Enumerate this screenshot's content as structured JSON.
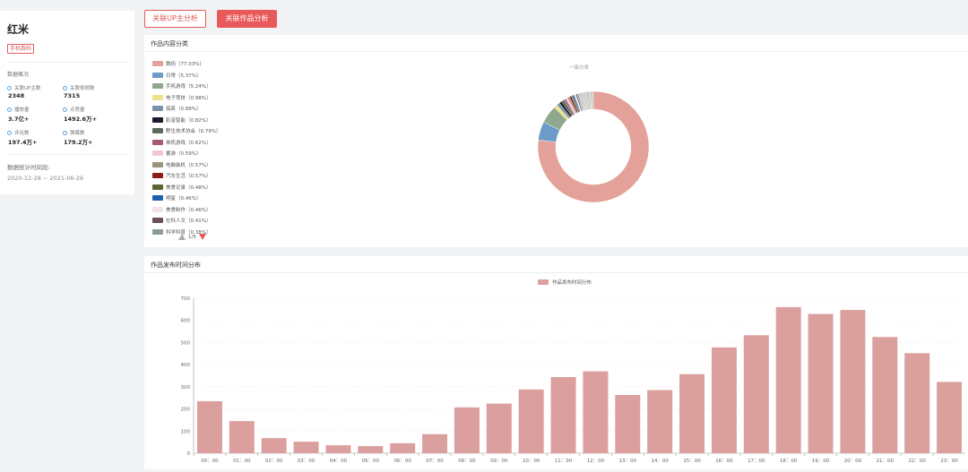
{
  "brand": {
    "name": "红米",
    "tag": "手机数码"
  },
  "overview": {
    "label": "数据概况",
    "stats": [
      {
        "label": "关联UP主数",
        "value": "2348"
      },
      {
        "label": "关联视频数",
        "value": "7315"
      },
      {
        "label": "播放量",
        "value": "3.7亿+"
      },
      {
        "label": "点赞量",
        "value": "1492.6万+"
      },
      {
        "label": "评论数",
        "value": "197.4万+"
      },
      {
        "label": "弹幕数",
        "value": "179.2万+"
      }
    ],
    "period_label": "数据统计时间段:",
    "period_value": "2020-12-28 ~ 2021-06-26"
  },
  "buttons": {
    "up_analysis": "关联UP主分析",
    "works_analysis": "关联作品分析"
  },
  "content_panel": {
    "title": "作品内容分类",
    "subtitle": "一级分类",
    "pager": "1/5",
    "legend": [
      {
        "label": "数码（77.03%）",
        "color": "#e4a199"
      },
      {
        "label": "日常（5.37%）",
        "color": "#6b9bc9"
      },
      {
        "label": "手机游戏（5.24%）",
        "color": "#8fa88d"
      },
      {
        "label": "电子竞技（0.98%）",
        "color": "#ede38a"
      },
      {
        "label": "搞笑（0.88%）",
        "color": "#7b90aa"
      },
      {
        "label": "影音智能（0.82%）",
        "color": "#1b1b2e"
      },
      {
        "label": "野生技术协会（0.79%）",
        "color": "#5a6b5a"
      },
      {
        "label": "单机游戏（0.62%）",
        "color": "#a8586d"
      },
      {
        "label": "番游（0.59%）",
        "color": "#efc8d2"
      },
      {
        "label": "电脑装机（0.57%）",
        "color": "#9a937f"
      },
      {
        "label": "汽车生活（0.57%）",
        "color": "#8e1a1a"
      },
      {
        "label": "美食记录（0.48%）",
        "color": "#5c6430"
      },
      {
        "label": "明星（0.46%）",
        "color": "#1f5fb0"
      },
      {
        "label": "美食制作（0.46%）",
        "color": "#f2e3e6"
      },
      {
        "label": "社科人文（0.41%）",
        "color": "#6a5058"
      },
      {
        "label": "科学科普（0.38%）",
        "color": "#8c9a9a"
      }
    ]
  },
  "chart_data": {
    "type": "bar",
    "title": "作品发布时间分布",
    "series_name": "作品发布时间分布",
    "categories": [
      "00：00",
      "01：00",
      "02：00",
      "03：00",
      "04：00",
      "05：00",
      "06：00",
      "07：00",
      "08：00",
      "09：00",
      "10：00",
      "11：00",
      "12：00",
      "13：00",
      "14：00",
      "15：00",
      "16：00",
      "17：00",
      "18：00",
      "19：00",
      "20：00",
      "21：00",
      "22：00",
      "23：00"
    ],
    "values": [
      235,
      145,
      68,
      52,
      36,
      32,
      45,
      86,
      207,
      224,
      288,
      344,
      370,
      263,
      285,
      357,
      478,
      533,
      660,
      629,
      647,
      525,
      452,
      322
    ],
    "ylim": [
      0,
      700
    ],
    "yticks": [
      "0",
      "100",
      "200",
      "300",
      "400",
      "500",
      "600",
      "700"
    ],
    "color": "#dba09e"
  }
}
